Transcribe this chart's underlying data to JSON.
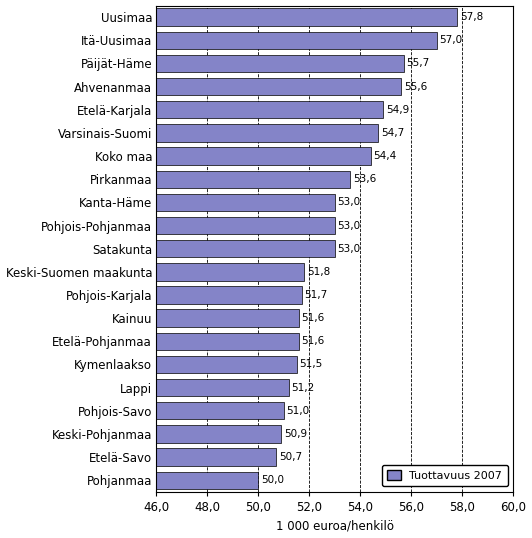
{
  "categories": [
    "Pohjanmaa",
    "Etelä-Savo",
    "Keski-Pohjanmaa",
    "Pohjois-Savo",
    "Lappi",
    "Kymenlaakso",
    "Etelä-Pohjanmaa",
    "Kainuu",
    "Pohjois-Karjala",
    "Keski-Suomen maakunta",
    "Satakunta",
    "Pohjois-Pohjanmaa",
    "Kanta-Häme",
    "Pirkanmaa",
    "Koko maa",
    "Varsinais-Suomi",
    "Etelä-Karjala",
    "Ahvenanmaa",
    "Päijät-Häme",
    "Itä-Uusimaa",
    "Uusimaa"
  ],
  "values": [
    50.0,
    50.7,
    50.9,
    51.0,
    51.2,
    51.5,
    51.6,
    51.6,
    51.7,
    51.8,
    53.0,
    53.0,
    53.0,
    53.6,
    54.4,
    54.7,
    54.9,
    55.6,
    55.7,
    57.0,
    57.8
  ],
  "bar_color": "#8484c8",
  "bar_edge_color": "#000000",
  "xlim_min": 46.0,
  "xlim_max": 60.0,
  "xticks": [
    46.0,
    48.0,
    50.0,
    52.0,
    54.0,
    56.0,
    58.0,
    60.0
  ],
  "xlabel": "1 000 euroa/henkilö",
  "legend_label": "Tuottavuus 2007",
  "value_labels": [
    "50,0",
    "50,7",
    "50,9",
    "51,0",
    "51,2",
    "51,5",
    "51,6",
    "51,6",
    "51,7",
    "51,8",
    "53,0",
    "53,0",
    "53,0",
    "53,6",
    "54,4",
    "54,7",
    "54,9",
    "55,6",
    "55,7",
    "57,0",
    "57,8"
  ],
  "background_color": "#ffffff",
  "bar_height": 0.75,
  "figwidth": 5.32,
  "figheight": 5.38,
  "dpi": 100
}
